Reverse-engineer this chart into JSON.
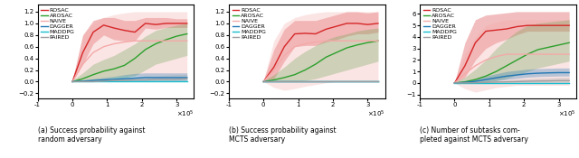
{
  "legend_labels": [
    "ROSAC",
    "AROSAC",
    "NAIVE",
    "DAGGER",
    "MADDPG",
    "PAIRED"
  ],
  "colors": {
    "ROSAC": "#d62728",
    "AROSAC": "#2ca02c",
    "NAIVE": "#f4a9a8",
    "DAGGER": "#1f77b4",
    "MADDPG": "#17becf",
    "PAIRED": "#9e9e9e"
  },
  "xlim": [
    -100000.0,
    350000.0
  ],
  "xticks": [
    -100000.0,
    0,
    100000.0,
    200000.0,
    300000.0
  ],
  "xticklabels": [
    "-1",
    "0",
    "1",
    "2",
    "3"
  ],
  "subplot_captions": [
    "(a) Success probability against\nrandom adversary",
    "(b) Success probability against\nMCTS adversary",
    "(c) Number of subtasks com-\npleted against MCTS adversary"
  ],
  "plot_a": {
    "ylim": [
      -0.28,
      1.32
    ],
    "yticks": [
      -0.2,
      0.0,
      0.2,
      0.4,
      0.6,
      0.8,
      1.0,
      1.2
    ],
    "curves": {
      "ROSAC": {
        "x": [
          0,
          30000.0,
          60000.0,
          90000.0,
          120000.0,
          150000.0,
          180000.0,
          210000.0,
          240000.0,
          270000.0,
          300000.0,
          330000.0
        ],
        "y": [
          0.0,
          0.5,
          0.85,
          0.97,
          0.92,
          0.88,
          0.85,
          1.0,
          0.98,
          1.0,
          1.0,
          1.0
        ],
        "y_lo": [
          0.0,
          0.3,
          0.65,
          0.8,
          0.72,
          0.7,
          0.7,
          0.92,
          0.9,
          0.93,
          0.93,
          0.93
        ],
        "y_hi": [
          0.02,
          0.8,
          1.05,
          1.1,
          1.1,
          1.05,
          1.05,
          1.1,
          1.1,
          1.1,
          1.08,
          1.08
        ]
      },
      "AROSAC": {
        "x": [
          0,
          30000.0,
          60000.0,
          90000.0,
          120000.0,
          150000.0,
          180000.0,
          210000.0,
          240000.0,
          270000.0,
          300000.0,
          330000.0
        ],
        "y": [
          0.0,
          0.05,
          0.12,
          0.18,
          0.22,
          0.28,
          0.4,
          0.55,
          0.65,
          0.72,
          0.78,
          0.82
        ],
        "y_lo": [
          0.0,
          0.0,
          0.02,
          0.05,
          0.05,
          0.07,
          0.1,
          0.2,
          0.3,
          0.35,
          0.4,
          0.45
        ],
        "y_hi": [
          0.02,
          0.15,
          0.3,
          0.38,
          0.45,
          0.55,
          0.65,
          0.78,
          0.88,
          0.93,
          0.97,
          1.0
        ]
      },
      "NAIVE": {
        "x": [
          0,
          30000.0,
          60000.0,
          90000.0,
          120000.0,
          150000.0,
          180000.0,
          210000.0,
          240000.0,
          270000.0,
          300000.0,
          330000.0
        ],
        "y": [
          0.0,
          0.3,
          0.5,
          0.6,
          0.65,
          0.68,
          0.7,
          0.7,
          0.7,
          0.7,
          0.7,
          0.7
        ],
        "y_lo": [
          0.0,
          0.0,
          0.03,
          0.05,
          0.08,
          0.1,
          0.1,
          0.1,
          0.1,
          0.1,
          0.1,
          0.1
        ],
        "y_hi": [
          0.02,
          0.8,
          1.0,
          1.1,
          1.15,
          1.18,
          1.2,
          1.2,
          1.2,
          1.2,
          1.2,
          1.2
        ]
      },
      "DAGGER": {
        "x": [
          0,
          30000.0,
          60000.0,
          90000.0,
          120000.0,
          150000.0,
          180000.0,
          210000.0,
          240000.0,
          270000.0,
          300000.0,
          330000.0
        ],
        "y": [
          0.0,
          0.01,
          0.02,
          0.03,
          0.04,
          0.05,
          0.06,
          0.07,
          0.07,
          0.07,
          0.07,
          0.07
        ],
        "y_lo": [
          0.0,
          0.0,
          0.0,
          0.0,
          0.0,
          0.0,
          0.0,
          0.0,
          0.0,
          0.0,
          0.0,
          0.0
        ],
        "y_hi": [
          0.01,
          0.03,
          0.05,
          0.07,
          0.09,
          0.12,
          0.14,
          0.15,
          0.15,
          0.15,
          0.15,
          0.15
        ]
      },
      "MADDPG": {
        "x": [
          0,
          30000.0,
          60000.0,
          90000.0,
          120000.0,
          150000.0,
          180000.0,
          210000.0,
          240000.0,
          270000.0,
          300000.0,
          330000.0
        ],
        "y": [
          0.0,
          0.0,
          0.0,
          0.0,
          0.0,
          0.0,
          0.0,
          0.0,
          0.0,
          0.0,
          0.0,
          0.0
        ],
        "y_lo": [
          0.0,
          0.0,
          0.0,
          0.0,
          0.0,
          0.0,
          0.0,
          0.0,
          0.0,
          0.0,
          0.0,
          0.0
        ],
        "y_hi": [
          0.0,
          0.0,
          0.0,
          0.0,
          0.0,
          0.0,
          0.0,
          0.0,
          0.0,
          0.0,
          0.0,
          0.0
        ]
      },
      "PAIRED": {
        "x": [
          0,
          30000.0,
          60000.0,
          90000.0,
          120000.0,
          150000.0,
          180000.0,
          210000.0,
          240000.0,
          270000.0,
          300000.0,
          330000.0
        ],
        "y": [
          0.0,
          0.0,
          0.0,
          0.01,
          0.02,
          0.02,
          0.03,
          0.03,
          0.04,
          0.04,
          0.04,
          0.05
        ],
        "y_lo": [
          0.0,
          0.0,
          0.0,
          0.0,
          0.0,
          0.0,
          0.0,
          0.0,
          0.0,
          0.0,
          0.0,
          0.0
        ],
        "y_hi": [
          0.0,
          0.01,
          0.02,
          0.03,
          0.05,
          0.07,
          0.08,
          0.1,
          0.1,
          0.11,
          0.12,
          0.12
        ]
      }
    }
  },
  "plot_b": {
    "ylim": [
      -0.28,
      1.32
    ],
    "yticks": [
      -0.2,
      0.0,
      0.2,
      0.4,
      0.6,
      0.8,
      1.0,
      1.2
    ],
    "curves": {
      "ROSAC": {
        "x": [
          0,
          30000.0,
          60000.0,
          90000.0,
          120000.0,
          150000.0,
          180000.0,
          210000.0,
          240000.0,
          270000.0,
          300000.0,
          330000.0
        ],
        "y": [
          0.0,
          0.25,
          0.6,
          0.82,
          0.83,
          0.82,
          0.9,
          0.95,
          1.0,
          1.0,
          0.98,
          1.0
        ],
        "y_lo": [
          0.0,
          0.05,
          0.35,
          0.6,
          0.62,
          0.62,
          0.68,
          0.72,
          0.78,
          0.82,
          0.82,
          0.85
        ],
        "y_hi": [
          0.02,
          0.55,
          0.9,
          1.05,
          1.05,
          1.05,
          1.1,
          1.15,
          1.2,
          1.2,
          1.18,
          1.2
        ]
      },
      "AROSAC": {
        "x": [
          0,
          30000.0,
          60000.0,
          90000.0,
          120000.0,
          150000.0,
          180000.0,
          210000.0,
          240000.0,
          270000.0,
          300000.0,
          330000.0
        ],
        "y": [
          0.0,
          0.03,
          0.07,
          0.12,
          0.2,
          0.3,
          0.42,
          0.5,
          0.58,
          0.63,
          0.67,
          0.7
        ],
        "y_lo": [
          0.0,
          0.0,
          0.0,
          0.0,
          0.02,
          0.05,
          0.1,
          0.15,
          0.2,
          0.25,
          0.3,
          0.35
        ],
        "y_hi": [
          0.02,
          0.12,
          0.25,
          0.4,
          0.52,
          0.62,
          0.72,
          0.78,
          0.82,
          0.87,
          0.9,
          0.92
        ]
      },
      "NAIVE": {
        "x": [
          0,
          30000.0,
          60000.0,
          90000.0,
          120000.0,
          150000.0,
          180000.0,
          210000.0,
          240000.0,
          270000.0,
          300000.0,
          330000.0
        ],
        "y": [
          0.0,
          0.2,
          0.45,
          0.6,
          0.65,
          0.68,
          0.7,
          0.7,
          0.7,
          0.7,
          0.7,
          0.7
        ],
        "y_lo": [
          0.0,
          -0.1,
          -0.15,
          -0.12,
          -0.08,
          -0.05,
          -0.02,
          0.0,
          0.0,
          0.0,
          0.0,
          0.0
        ],
        "y_hi": [
          0.02,
          0.7,
          1.0,
          1.1,
          1.15,
          1.18,
          1.2,
          1.2,
          1.2,
          1.2,
          1.2,
          1.2
        ]
      },
      "DAGGER": {
        "x": [
          0,
          30000.0,
          60000.0,
          90000.0,
          120000.0,
          150000.0,
          180000.0,
          210000.0,
          240000.0,
          270000.0,
          300000.0,
          330000.0
        ],
        "y": [
          0.0,
          0.0,
          0.0,
          0.0,
          0.0,
          0.0,
          0.0,
          0.0,
          0.0,
          0.0,
          0.0,
          0.0
        ],
        "y_lo": [
          0.0,
          0.0,
          0.0,
          0.0,
          0.0,
          0.0,
          0.0,
          0.0,
          0.0,
          0.0,
          0.0,
          0.0
        ],
        "y_hi": [
          0.0,
          0.0,
          0.0,
          0.0,
          0.0,
          0.0,
          0.0,
          0.0,
          0.0,
          0.0,
          0.0,
          0.0
        ]
      },
      "MADDPG": {
        "x": [
          0,
          30000.0,
          60000.0,
          90000.0,
          120000.0,
          150000.0,
          180000.0,
          210000.0,
          240000.0,
          270000.0,
          300000.0,
          330000.0
        ],
        "y": [
          0.0,
          0.0,
          0.0,
          0.0,
          0.0,
          0.0,
          0.0,
          0.0,
          0.0,
          0.0,
          0.0,
          0.0
        ],
        "y_lo": [
          0.0,
          0.0,
          0.0,
          0.0,
          0.0,
          0.0,
          0.0,
          0.0,
          0.0,
          0.0,
          0.0,
          0.0
        ],
        "y_hi": [
          0.0,
          0.0,
          0.0,
          0.0,
          0.0,
          0.0,
          0.0,
          0.0,
          0.0,
          0.0,
          0.0,
          0.0
        ]
      },
      "PAIRED": {
        "x": [
          0,
          30000.0,
          60000.0,
          90000.0,
          120000.0,
          150000.0,
          180000.0,
          210000.0,
          240000.0,
          270000.0,
          300000.0,
          330000.0
        ],
        "y": [
          0.0,
          0.0,
          0.0,
          0.0,
          0.0,
          0.0,
          0.0,
          0.0,
          0.0,
          0.0,
          0.0,
          0.0
        ],
        "y_lo": [
          0.0,
          0.0,
          0.0,
          0.0,
          0.0,
          0.0,
          0.0,
          0.0,
          0.0,
          0.0,
          0.0,
          0.0
        ],
        "y_hi": [
          0.0,
          0.0,
          0.0,
          0.0,
          0.0,
          0.0,
          0.0,
          0.0,
          0.0,
          0.0,
          0.0,
          0.0
        ]
      }
    }
  },
  "plot_c": {
    "ylim": [
      -1.3,
      6.8
    ],
    "yticks": [
      -1,
      0,
      1,
      2,
      3,
      4,
      5,
      6
    ],
    "curves": {
      "ROSAC": {
        "x": [
          0,
          30000.0,
          60000.0,
          90000.0,
          120000.0,
          150000.0,
          180000.0,
          210000.0,
          240000.0,
          270000.0,
          300000.0,
          330000.0
        ],
        "y": [
          0.0,
          1.5,
          3.5,
          4.5,
          4.6,
          4.7,
          4.9,
          5.0,
          5.0,
          5.0,
          5.0,
          5.0
        ],
        "y_lo": [
          0.0,
          0.5,
          2.0,
          3.0,
          3.5,
          3.8,
          4.2,
          4.5,
          4.5,
          4.5,
          4.5,
          4.5
        ],
        "y_hi": [
          0.05,
          3.5,
          5.5,
          5.9,
          6.0,
          6.1,
          6.2,
          6.2,
          6.2,
          6.2,
          6.2,
          6.2
        ]
      },
      "AROSAC": {
        "x": [
          0,
          30000.0,
          60000.0,
          90000.0,
          120000.0,
          150000.0,
          180000.0,
          210000.0,
          240000.0,
          270000.0,
          300000.0,
          330000.0
        ],
        "y": [
          0.0,
          0.1,
          0.3,
          0.6,
          1.0,
          1.5,
          2.0,
          2.5,
          2.9,
          3.1,
          3.3,
          3.5
        ],
        "y_lo": [
          0.0,
          0.0,
          0.0,
          0.05,
          0.2,
          0.4,
          0.7,
          1.0,
          1.3,
          1.5,
          1.7,
          1.9
        ],
        "y_hi": [
          0.05,
          0.5,
          1.2,
          2.0,
          3.0,
          3.8,
          4.5,
          5.0,
          5.2,
          5.3,
          5.4,
          5.5
        ]
      },
      "NAIVE": {
        "x": [
          0,
          30000.0,
          60000.0,
          90000.0,
          120000.0,
          150000.0,
          180000.0,
          210000.0,
          240000.0,
          270000.0,
          300000.0,
          330000.0
        ],
        "y": [
          0.0,
          0.8,
          1.5,
          2.0,
          2.3,
          2.5,
          2.5,
          2.5,
          2.5,
          2.5,
          2.5,
          2.5
        ],
        "y_lo": [
          0.0,
          -0.5,
          -0.8,
          -0.6,
          -0.4,
          -0.3,
          -0.2,
          -0.2,
          -0.2,
          -0.2,
          -0.2,
          -0.2
        ],
        "y_hi": [
          0.05,
          2.5,
          4.0,
          5.0,
          5.3,
          5.5,
          5.5,
          5.5,
          5.5,
          5.5,
          5.5,
          5.5
        ]
      },
      "DAGGER": {
        "x": [
          0,
          30000.0,
          60000.0,
          90000.0,
          120000.0,
          150000.0,
          180000.0,
          210000.0,
          240000.0,
          270000.0,
          300000.0,
          330000.0
        ],
        "y": [
          0.0,
          0.05,
          0.15,
          0.3,
          0.45,
          0.6,
          0.7,
          0.8,
          0.85,
          0.88,
          0.9,
          0.9
        ],
        "y_lo": [
          0.0,
          0.0,
          0.05,
          0.1,
          0.2,
          0.3,
          0.4,
          0.5,
          0.55,
          0.58,
          0.6,
          0.6
        ],
        "y_hi": [
          0.02,
          0.15,
          0.35,
          0.6,
          0.8,
          1.0,
          1.1,
          1.2,
          1.25,
          1.28,
          1.3,
          1.3
        ]
      },
      "MADDPG": {
        "x": [
          0,
          30000.0,
          60000.0,
          90000.0,
          120000.0,
          150000.0,
          180000.0,
          210000.0,
          240000.0,
          270000.0,
          300000.0,
          330000.0
        ],
        "y": [
          0.0,
          0.0,
          0.0,
          0.0,
          0.0,
          0.0,
          0.0,
          0.0,
          0.0,
          0.0,
          0.0,
          0.0
        ],
        "y_lo": [
          0.0,
          0.0,
          0.0,
          0.0,
          0.0,
          0.0,
          0.0,
          0.0,
          0.0,
          0.0,
          0.0,
          0.0
        ],
        "y_hi": [
          0.0,
          0.0,
          0.0,
          0.0,
          0.0,
          0.0,
          0.0,
          0.0,
          0.0,
          0.0,
          0.0,
          0.0
        ]
      },
      "PAIRED": {
        "x": [
          0,
          30000.0,
          60000.0,
          90000.0,
          120000.0,
          150000.0,
          180000.0,
          210000.0,
          240000.0,
          270000.0,
          300000.0,
          330000.0
        ],
        "y": [
          0.0,
          0.0,
          0.02,
          0.05,
          0.08,
          0.1,
          0.12,
          0.15,
          0.17,
          0.18,
          0.2,
          0.2
        ],
        "y_lo": [
          0.0,
          0.0,
          0.0,
          0.0,
          0.0,
          0.0,
          0.0,
          0.0,
          0.0,
          0.0,
          0.0,
          0.0
        ],
        "y_hi": [
          0.0,
          0.03,
          0.07,
          0.12,
          0.18,
          0.25,
          0.32,
          0.38,
          0.42,
          0.45,
          0.48,
          0.5
        ]
      }
    }
  }
}
